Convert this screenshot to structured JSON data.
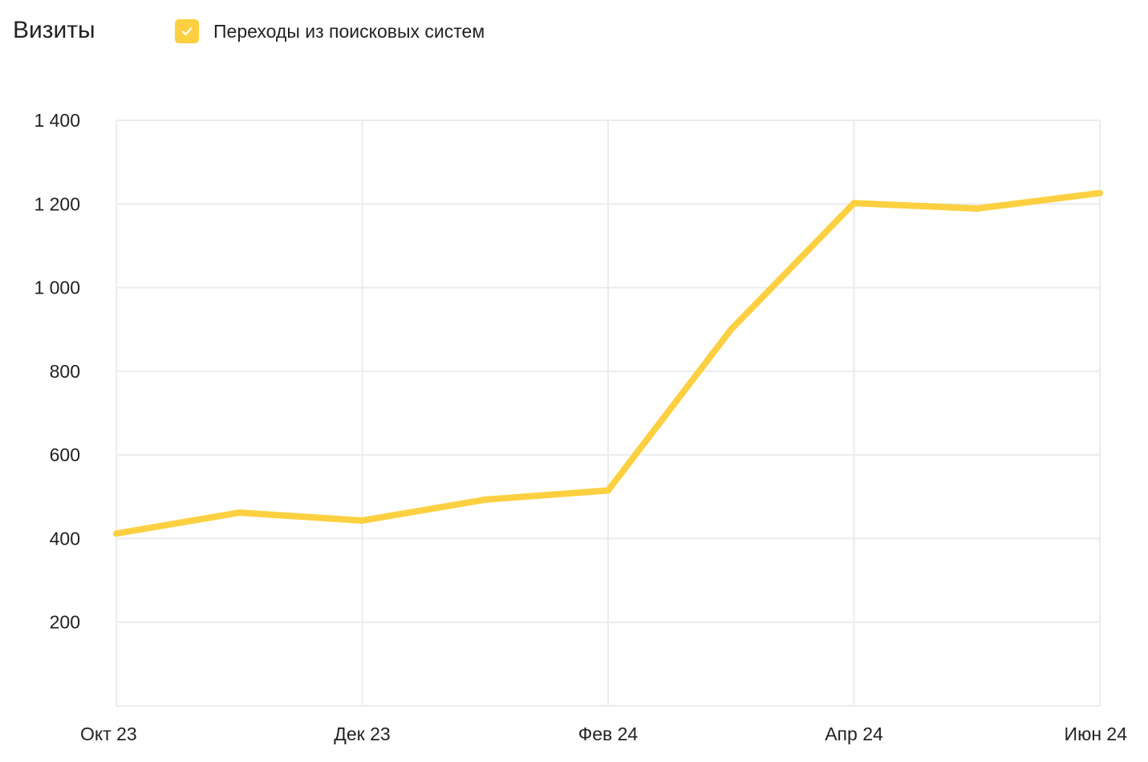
{
  "header": {
    "title": "Визиты",
    "legend_label": "Переходы из поисковых систем"
  },
  "colors": {
    "series": "#FCD040",
    "grid": "#ebebeb",
    "text": "#222222"
  },
  "icons": {
    "legend_check": "checkmark-icon"
  },
  "chart_data": {
    "type": "line",
    "title": "Визиты",
    "xlabel": "",
    "ylabel": "",
    "x": [
      "2023-10",
      "2023-11",
      "2023-12",
      "2024-01",
      "2024-02",
      "2024-03",
      "2024-04",
      "2024-05",
      "2024-06"
    ],
    "x_tick_labels": [
      {
        "index": 0,
        "label": "Окт 23"
      },
      {
        "index": 2,
        "label": "Дек 23"
      },
      {
        "index": 4,
        "label": "Фев 24"
      },
      {
        "index": 6,
        "label": "Апр 24"
      },
      {
        "index": 8,
        "label": "Июн 24"
      }
    ],
    "y_ticks": [
      {
        "value": 200,
        "label": "200"
      },
      {
        "value": 400,
        "label": "400"
      },
      {
        "value": 600,
        "label": "600"
      },
      {
        "value": 800,
        "label": "800"
      },
      {
        "value": 1000,
        "label": "1 000"
      },
      {
        "value": 1200,
        "label": "1 200"
      },
      {
        "value": 1400,
        "label": "1 400"
      }
    ],
    "ylim": [
      0,
      1400
    ],
    "grid": true,
    "legend_position": "top",
    "series": [
      {
        "name": "Переходы из поисковых систем",
        "values": [
          412,
          462,
          443,
          493,
          515,
          900,
          1202,
          1189,
          1226
        ]
      }
    ]
  }
}
